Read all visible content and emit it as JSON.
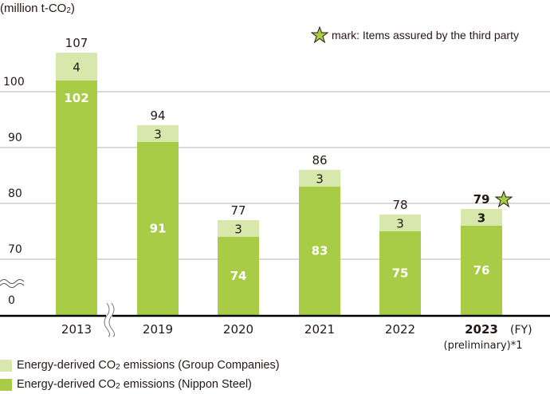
{
  "chart_data": {
    "type": "bar",
    "stacked": true,
    "title": "",
    "ylabel": "(million t-CO2)",
    "xlabel": "(FY)",
    "ylim_broken": [
      0,
      70,
      107
    ],
    "yticks": [
      0,
      70,
      80,
      90,
      100
    ],
    "grid": true,
    "categories": [
      "2013",
      "2019",
      "2020",
      "2021",
      "2022",
      "2023"
    ],
    "category_sublabels": [
      "",
      "",
      "",
      "",
      "",
      "(preliminary)*1"
    ],
    "highlight_category": "2023",
    "series": [
      {
        "name": "Energy-derived CO2 emissions (Nippon Steel)",
        "color": "#a8cc45",
        "values": [
          102,
          91,
          74,
          83,
          75,
          76
        ]
      },
      {
        "name": "Energy-derived CO2 emissions (Group Companies)",
        "color": "#d8e8ac",
        "values": [
          4,
          3,
          3,
          3,
          3,
          3
        ]
      }
    ],
    "totals": [
      107,
      94,
      77,
      86,
      78,
      79
    ],
    "assured_categories": [
      "2023"
    ],
    "legend_placement": "bottom-left",
    "annotation": "mark: Items assured by the third party",
    "axis_break_note": "axis broken between 0 and 70; x-axis broken between 2013 and 2019"
  },
  "unit_label": "(million t-CO",
  "unit_sub": "2",
  "unit_close": ")",
  "note_text": "mark: Items assured by the third party",
  "legend": [
    {
      "pre": "Energy-derived CO",
      "sub": "2",
      "post": " emissions (Group Companies)"
    },
    {
      "pre": "Energy-derived CO",
      "sub": "2",
      "post": " emissions (Nippon Steel)"
    }
  ],
  "colors": {
    "nippon": "#a8cc45",
    "group": "#d8e8ac",
    "star": "#a8cc45",
    "grid": "#b5b5b5",
    "axis": "#000000"
  }
}
